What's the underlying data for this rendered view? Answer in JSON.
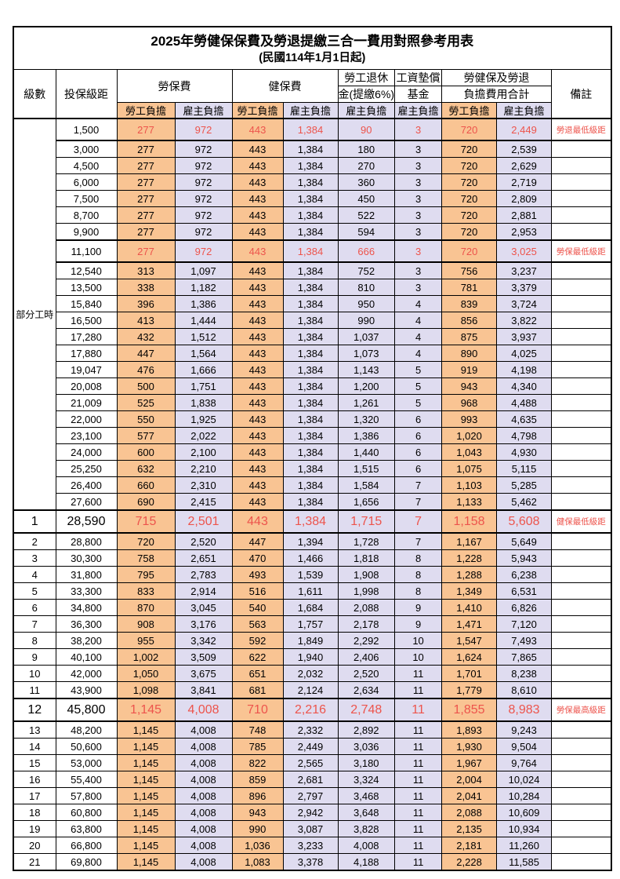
{
  "title": "2025年勞健保保費及勞退提繳三合一費用對照參考用表",
  "subtitle": "(民國114年1月1日起)",
  "header": {
    "level": "級數",
    "bracket": "投保級距",
    "labor_ins": "勞保費",
    "health_ins": "健保費",
    "pension_line1": "勞工退休",
    "pension_line2": "金(提繳6%)",
    "wage_fund_line1": "工資墊償",
    "wage_fund_line2": "基金",
    "total_line1": "勞健保及勞退",
    "total_line2": "負擔費用合計",
    "remark": "備註",
    "employee": "勞工負擔",
    "employer": "雇主負擔"
  },
  "part_time_label": "部分工時",
  "colors": {
    "employee_bg": "#f9c493",
    "employer_bg": "#dfdcf0",
    "highlight_red": "#ed544c"
  },
  "rows": [
    {
      "level": "",
      "bracket": "1,500",
      "values": [
        "277",
        "972",
        "443",
        "1,384",
        "90",
        "3",
        "720",
        "2,449"
      ],
      "remark": "勞退最低級距",
      "hl": true,
      "big": false
    },
    {
      "level": "",
      "bracket": "3,000",
      "values": [
        "277",
        "972",
        "443",
        "1,384",
        "180",
        "3",
        "720",
        "2,539"
      ],
      "remark": "",
      "hl": false,
      "big": false
    },
    {
      "level": "",
      "bracket": "4,500",
      "values": [
        "277",
        "972",
        "443",
        "1,384",
        "270",
        "3",
        "720",
        "2,629"
      ],
      "remark": "",
      "hl": false,
      "big": false
    },
    {
      "level": "",
      "bracket": "6,000",
      "values": [
        "277",
        "972",
        "443",
        "1,384",
        "360",
        "3",
        "720",
        "2,719"
      ],
      "remark": "",
      "hl": false,
      "big": false
    },
    {
      "level": "",
      "bracket": "7,500",
      "values": [
        "277",
        "972",
        "443",
        "1,384",
        "450",
        "3",
        "720",
        "2,809"
      ],
      "remark": "",
      "hl": false,
      "big": false
    },
    {
      "level": "",
      "bracket": "8,700",
      "values": [
        "277",
        "972",
        "443",
        "1,384",
        "522",
        "3",
        "720",
        "2,881"
      ],
      "remark": "",
      "hl": false,
      "big": false
    },
    {
      "level": "",
      "bracket": "9,900",
      "values": [
        "277",
        "972",
        "443",
        "1,384",
        "594",
        "3",
        "720",
        "2,953"
      ],
      "remark": "",
      "hl": false,
      "big": false
    },
    {
      "level": "",
      "bracket": "11,100",
      "values": [
        "277",
        "972",
        "443",
        "1,384",
        "666",
        "3",
        "720",
        "3,025"
      ],
      "remark": "勞保最低級距",
      "hl": true,
      "big": false
    },
    {
      "level": "",
      "bracket": "12,540",
      "values": [
        "313",
        "1,097",
        "443",
        "1,384",
        "752",
        "3",
        "756",
        "3,237"
      ],
      "remark": "",
      "hl": false,
      "big": false
    },
    {
      "level": "",
      "bracket": "13,500",
      "values": [
        "338",
        "1,182",
        "443",
        "1,384",
        "810",
        "3",
        "781",
        "3,379"
      ],
      "remark": "",
      "hl": false,
      "big": false
    },
    {
      "level": "",
      "bracket": "15,840",
      "values": [
        "396",
        "1,386",
        "443",
        "1,384",
        "950",
        "4",
        "839",
        "3,724"
      ],
      "remark": "",
      "hl": false,
      "big": false
    },
    {
      "level": "",
      "bracket": "16,500",
      "values": [
        "413",
        "1,444",
        "443",
        "1,384",
        "990",
        "4",
        "856",
        "3,822"
      ],
      "remark": "",
      "hl": false,
      "big": false
    },
    {
      "level": "",
      "bracket": "17,280",
      "values": [
        "432",
        "1,512",
        "443",
        "1,384",
        "1,037",
        "4",
        "875",
        "3,937"
      ],
      "remark": "",
      "hl": false,
      "big": false
    },
    {
      "level": "",
      "bracket": "17,880",
      "values": [
        "447",
        "1,564",
        "443",
        "1,384",
        "1,073",
        "4",
        "890",
        "4,025"
      ],
      "remark": "",
      "hl": false,
      "big": false
    },
    {
      "level": "",
      "bracket": "19,047",
      "values": [
        "476",
        "1,666",
        "443",
        "1,384",
        "1,143",
        "5",
        "919",
        "4,198"
      ],
      "remark": "",
      "hl": false,
      "big": false
    },
    {
      "level": "",
      "bracket": "20,008",
      "values": [
        "500",
        "1,751",
        "443",
        "1,384",
        "1,200",
        "5",
        "943",
        "4,340"
      ],
      "remark": "",
      "hl": false,
      "big": false
    },
    {
      "level": "",
      "bracket": "21,009",
      "values": [
        "525",
        "1,838",
        "443",
        "1,384",
        "1,261",
        "5",
        "968",
        "4,488"
      ],
      "remark": "",
      "hl": false,
      "big": false
    },
    {
      "level": "",
      "bracket": "22,000",
      "values": [
        "550",
        "1,925",
        "443",
        "1,384",
        "1,320",
        "6",
        "993",
        "4,635"
      ],
      "remark": "",
      "hl": false,
      "big": false
    },
    {
      "level": "",
      "bracket": "23,100",
      "values": [
        "577",
        "2,022",
        "443",
        "1,384",
        "1,386",
        "6",
        "1,020",
        "4,798"
      ],
      "remark": "",
      "hl": false,
      "big": false
    },
    {
      "level": "",
      "bracket": "24,000",
      "values": [
        "600",
        "2,100",
        "443",
        "1,384",
        "1,440",
        "6",
        "1,043",
        "4,930"
      ],
      "remark": "",
      "hl": false,
      "big": false
    },
    {
      "level": "",
      "bracket": "25,250",
      "values": [
        "632",
        "2,210",
        "443",
        "1,384",
        "1,515",
        "6",
        "1,075",
        "5,115"
      ],
      "remark": "",
      "hl": false,
      "big": false
    },
    {
      "level": "",
      "bracket": "26,400",
      "values": [
        "660",
        "2,310",
        "443",
        "1,384",
        "1,584",
        "7",
        "1,103",
        "5,285"
      ],
      "remark": "",
      "hl": false,
      "big": false
    },
    {
      "level": "",
      "bracket": "27,600",
      "values": [
        "690",
        "2,415",
        "443",
        "1,384",
        "1,656",
        "7",
        "1,133",
        "5,462"
      ],
      "remark": "",
      "hl": false,
      "big": false
    },
    {
      "level": "1",
      "bracket": "28,590",
      "values": [
        "715",
        "2,501",
        "443",
        "1,384",
        "1,715",
        "7",
        "1,158",
        "5,608"
      ],
      "remark": "健保最低級距",
      "hl": true,
      "big": true
    },
    {
      "level": "2",
      "bracket": "28,800",
      "values": [
        "720",
        "2,520",
        "447",
        "1,394",
        "1,728",
        "7",
        "1,167",
        "5,649"
      ],
      "remark": "",
      "hl": false,
      "big": false
    },
    {
      "level": "3",
      "bracket": "30,300",
      "values": [
        "758",
        "2,651",
        "470",
        "1,466",
        "1,818",
        "8",
        "1,228",
        "5,943"
      ],
      "remark": "",
      "hl": false,
      "big": false
    },
    {
      "level": "4",
      "bracket": "31,800",
      "values": [
        "795",
        "2,783",
        "493",
        "1,539",
        "1,908",
        "8",
        "1,288",
        "6,238"
      ],
      "remark": "",
      "hl": false,
      "big": false
    },
    {
      "level": "5",
      "bracket": "33,300",
      "values": [
        "833",
        "2,914",
        "516",
        "1,611",
        "1,998",
        "8",
        "1,349",
        "6,531"
      ],
      "remark": "",
      "hl": false,
      "big": false
    },
    {
      "level": "6",
      "bracket": "34,800",
      "values": [
        "870",
        "3,045",
        "540",
        "1,684",
        "2,088",
        "9",
        "1,410",
        "6,826"
      ],
      "remark": "",
      "hl": false,
      "big": false
    },
    {
      "level": "7",
      "bracket": "36,300",
      "values": [
        "908",
        "3,176",
        "563",
        "1,757",
        "2,178",
        "9",
        "1,471",
        "7,120"
      ],
      "remark": "",
      "hl": false,
      "big": false
    },
    {
      "level": "8",
      "bracket": "38,200",
      "values": [
        "955",
        "3,342",
        "592",
        "1,849",
        "2,292",
        "10",
        "1,547",
        "7,493"
      ],
      "remark": "",
      "hl": false,
      "big": false
    },
    {
      "level": "9",
      "bracket": "40,100",
      "values": [
        "1,002",
        "3,509",
        "622",
        "1,940",
        "2,406",
        "10",
        "1,624",
        "7,865"
      ],
      "remark": "",
      "hl": false,
      "big": false
    },
    {
      "level": "10",
      "bracket": "42,000",
      "values": [
        "1,050",
        "3,675",
        "651",
        "2,032",
        "2,520",
        "11",
        "1,701",
        "8,238"
      ],
      "remark": "",
      "hl": false,
      "big": false
    },
    {
      "level": "11",
      "bracket": "43,900",
      "values": [
        "1,098",
        "3,841",
        "681",
        "2,124",
        "2,634",
        "11",
        "1,779",
        "8,610"
      ],
      "remark": "",
      "hl": false,
      "big": false
    },
    {
      "level": "12",
      "bracket": "45,800",
      "values": [
        "1,145",
        "4,008",
        "710",
        "2,216",
        "2,748",
        "11",
        "1,855",
        "8,983"
      ],
      "remark": "勞保最高級距",
      "hl": true,
      "big": true
    },
    {
      "level": "13",
      "bracket": "48,200",
      "values": [
        "1,145",
        "4,008",
        "748",
        "2,332",
        "2,892",
        "11",
        "1,893",
        "9,243"
      ],
      "remark": "",
      "hl": false,
      "big": false
    },
    {
      "level": "14",
      "bracket": "50,600",
      "values": [
        "1,145",
        "4,008",
        "785",
        "2,449",
        "3,036",
        "11",
        "1,930",
        "9,504"
      ],
      "remark": "",
      "hl": false,
      "big": false
    },
    {
      "level": "15",
      "bracket": "53,000",
      "values": [
        "1,145",
        "4,008",
        "822",
        "2,565",
        "3,180",
        "11",
        "1,967",
        "9,764"
      ],
      "remark": "",
      "hl": false,
      "big": false
    },
    {
      "level": "16",
      "bracket": "55,400",
      "values": [
        "1,145",
        "4,008",
        "859",
        "2,681",
        "3,324",
        "11",
        "2,004",
        "10,024"
      ],
      "remark": "",
      "hl": false,
      "big": false
    },
    {
      "level": "17",
      "bracket": "57,800",
      "values": [
        "1,145",
        "4,008",
        "896",
        "2,797",
        "3,468",
        "11",
        "2,041",
        "10,284"
      ],
      "remark": "",
      "hl": false,
      "big": false
    },
    {
      "level": "18",
      "bracket": "60,800",
      "values": [
        "1,145",
        "4,008",
        "943",
        "2,942",
        "3,648",
        "11",
        "2,088",
        "10,609"
      ],
      "remark": "",
      "hl": false,
      "big": false
    },
    {
      "level": "19",
      "bracket": "63,800",
      "values": [
        "1,145",
        "4,008",
        "990",
        "3,087",
        "3,828",
        "11",
        "2,135",
        "10,934"
      ],
      "remark": "",
      "hl": false,
      "big": false
    },
    {
      "level": "20",
      "bracket": "66,800",
      "values": [
        "1,145",
        "4,008",
        "1,036",
        "3,233",
        "4,008",
        "11",
        "2,181",
        "11,260"
      ],
      "remark": "",
      "hl": false,
      "big": false
    },
    {
      "level": "21",
      "bracket": "69,800",
      "values": [
        "1,145",
        "4,008",
        "1,083",
        "3,378",
        "4,188",
        "11",
        "2,228",
        "11,585"
      ],
      "remark": "",
      "hl": false,
      "big": false
    }
  ]
}
